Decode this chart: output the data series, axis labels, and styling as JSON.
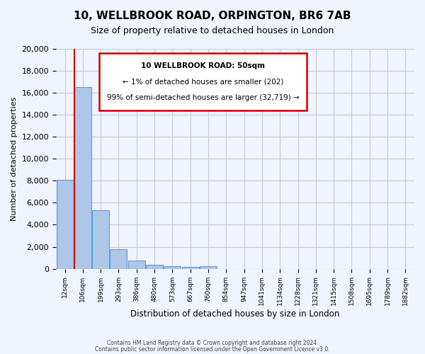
{
  "title": "10, WELLBROOK ROAD, ORPINGTON, BR6 7AB",
  "subtitle": "Size of property relative to detached houses in London",
  "xlabel": "Distribution of detached houses by size in London",
  "ylabel": "Number of detached properties",
  "bar_values": [
    8100,
    16550,
    5300,
    1800,
    750,
    350,
    250,
    150,
    200,
    0,
    0,
    0,
    0,
    0,
    0,
    0,
    0,
    0,
    0,
    0
  ],
  "bar_labels": [
    "12sqm",
    "106sqm",
    "199sqm",
    "293sqm",
    "386sqm",
    "480sqm",
    "573sqm",
    "667sqm",
    "760sqm",
    "854sqm",
    "947sqm",
    "1041sqm",
    "1134sqm",
    "1228sqm",
    "1321sqm",
    "1415sqm",
    "1508sqm",
    "1695sqm",
    "1789sqm",
    "1882sqm"
  ],
  "bar_color": "#aec6e8",
  "bar_edge_color": "#5a9fd4",
  "ylim": [
    0,
    20000
  ],
  "yticks": [
    0,
    2000,
    4000,
    6000,
    8000,
    10000,
    12000,
    14000,
    16000,
    18000,
    20000
  ],
  "annotation_box_text_line1": "10 WELLBROOK ROAD: 50sqm",
  "annotation_box_text_line2": "← 1% of detached houses are smaller (202)",
  "annotation_box_text_line3": "99% of semi-detached houses are larger (32,719) →",
  "red_line_x": 0.525,
  "annotation_box_color": "#ffffff",
  "annotation_box_edge_color": "#cc0000",
  "grid_color": "#cccccc",
  "background_color": "#f0f4ff",
  "footer_line1": "Contains HM Land Registry data © Crown copyright and database right 2024.",
  "footer_line2": "Contains public sector information licensed under the Open Government Licence v3.0."
}
